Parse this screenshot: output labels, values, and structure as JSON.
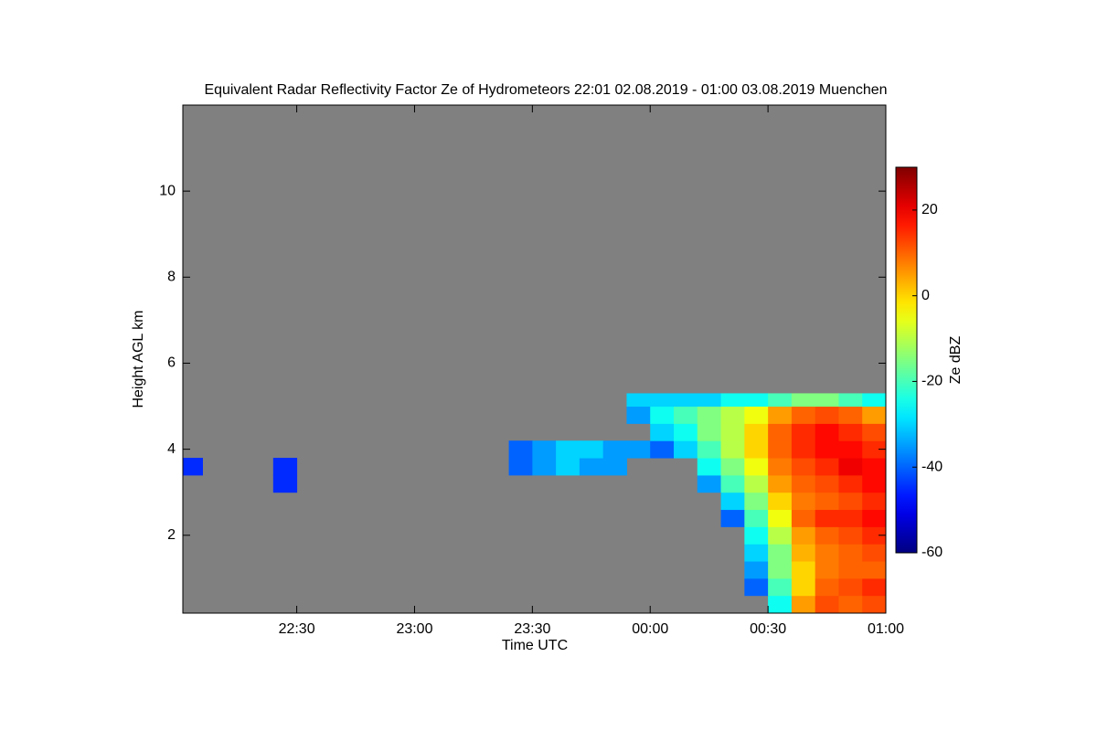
{
  "chart_data": {
    "type": "heatmap",
    "title": "Equivalent Radar Reflectivity Factor Ze of Hydrometeors   22:01 02.08.2019 - 01:00 03.08.2019 Muenchen",
    "x_label": "Time UTC",
    "y_label": "Height AGL km",
    "colorbar_label": "Ze dBZ",
    "colormap": "jet",
    "background": "#808080",
    "xlim": [
      1,
      180
    ],
    "xticks": [
      {
        "value": 30,
        "label": "22:30"
      },
      {
        "value": 60,
        "label": "23:00"
      },
      {
        "value": 90,
        "label": "23:30"
      },
      {
        "value": 120,
        "label": "00:00"
      },
      {
        "value": 150,
        "label": "00:30"
      },
      {
        "value": 180,
        "label": "01:00"
      }
    ],
    "ylim": [
      0.19,
      12
    ],
    "yticks": [
      2,
      4,
      6,
      8,
      10
    ],
    "clim": [
      -60,
      30
    ],
    "cticks": [
      -60,
      -40,
      -20,
      0,
      20
    ],
    "x_bins": [
      1,
      6,
      12,
      18,
      24,
      30,
      36,
      42,
      48,
      54,
      60,
      66,
      72,
      78,
      84,
      90,
      96,
      102,
      108,
      114,
      120,
      126,
      132,
      138,
      144,
      150,
      156,
      162,
      168,
      174,
      180
    ],
    "y_bins": [
      0.19,
      0.6,
      1.0,
      1.4,
      1.8,
      2.2,
      2.6,
      3.0,
      3.4,
      3.8,
      4.2,
      4.6,
      5.0,
      5.3
    ],
    "z": [
      [
        null,
        null,
        null,
        null,
        null,
        null,
        null,
        null,
        null,
        null,
        null,
        null,
        null,
        null,
        null,
        null,
        null,
        null,
        null,
        null,
        null,
        null,
        null,
        null,
        null,
        -25,
        5,
        12,
        10,
        12
      ],
      [
        null,
        null,
        null,
        null,
        null,
        null,
        null,
        null,
        null,
        null,
        null,
        null,
        null,
        null,
        null,
        null,
        null,
        null,
        null,
        null,
        null,
        null,
        null,
        null,
        -40,
        -20,
        0,
        10,
        12,
        15
      ],
      [
        null,
        null,
        null,
        null,
        null,
        null,
        null,
        null,
        null,
        null,
        null,
        null,
        null,
        null,
        null,
        null,
        null,
        null,
        null,
        null,
        null,
        null,
        null,
        null,
        -35,
        -15,
        0,
        8,
        10,
        10
      ],
      [
        null,
        null,
        null,
        null,
        null,
        null,
        null,
        null,
        null,
        null,
        null,
        null,
        null,
        null,
        null,
        null,
        null,
        null,
        null,
        null,
        null,
        null,
        null,
        null,
        -30,
        -15,
        3,
        8,
        10,
        12
      ],
      [
        null,
        null,
        null,
        null,
        null,
        null,
        null,
        null,
        null,
        null,
        null,
        null,
        null,
        null,
        null,
        null,
        null,
        null,
        null,
        null,
        null,
        null,
        null,
        null,
        -25,
        -10,
        5,
        10,
        12,
        15
      ],
      [
        null,
        null,
        null,
        null,
        null,
        null,
        null,
        null,
        null,
        null,
        null,
        null,
        null,
        null,
        null,
        null,
        null,
        null,
        null,
        null,
        null,
        null,
        null,
        -40,
        -20,
        -5,
        10,
        15,
        15,
        18
      ],
      [
        null,
        null,
        null,
        null,
        null,
        null,
        null,
        null,
        null,
        null,
        null,
        null,
        null,
        null,
        null,
        null,
        null,
        null,
        null,
        null,
        null,
        null,
        null,
        -30,
        -15,
        0,
        8,
        10,
        12,
        15
      ],
      [
        null,
        null,
        null,
        null,
        -45,
        null,
        null,
        null,
        null,
        null,
        null,
        null,
        null,
        null,
        null,
        null,
        null,
        null,
        null,
        null,
        null,
        null,
        -35,
        -20,
        -10,
        5,
        10,
        12,
        15,
        18
      ],
      [
        -45,
        null,
        null,
        null,
        -45,
        null,
        null,
        null,
        null,
        null,
        null,
        null,
        null,
        null,
        -40,
        -35,
        -30,
        -35,
        -35,
        null,
        null,
        null,
        -25,
        -15,
        -5,
        8,
        12,
        15,
        20,
        18
      ],
      [
        null,
        null,
        null,
        null,
        null,
        null,
        null,
        null,
        null,
        null,
        null,
        null,
        null,
        null,
        -40,
        -35,
        -30,
        -30,
        -35,
        -35,
        -40,
        -30,
        -20,
        -10,
        0,
        10,
        15,
        18,
        18,
        15
      ],
      [
        null,
        null,
        null,
        null,
        null,
        null,
        null,
        null,
        null,
        null,
        null,
        null,
        null,
        null,
        null,
        null,
        null,
        null,
        null,
        null,
        -30,
        -25,
        -15,
        -10,
        0,
        10,
        15,
        18,
        15,
        12
      ],
      [
        null,
        null,
        null,
        null,
        null,
        null,
        null,
        null,
        null,
        null,
        null,
        null,
        null,
        null,
        null,
        null,
        null,
        null,
        null,
        -35,
        -25,
        -20,
        -15,
        -10,
        -5,
        5,
        10,
        12,
        10,
        5
      ],
      [
        null,
        null,
        null,
        null,
        null,
        null,
        null,
        null,
        null,
        null,
        null,
        null,
        null,
        null,
        null,
        null,
        null,
        null,
        null,
        -30,
        -30,
        -30,
        -30,
        -25,
        -25,
        -20,
        -15,
        -15,
        -20,
        -25
      ]
    ]
  }
}
